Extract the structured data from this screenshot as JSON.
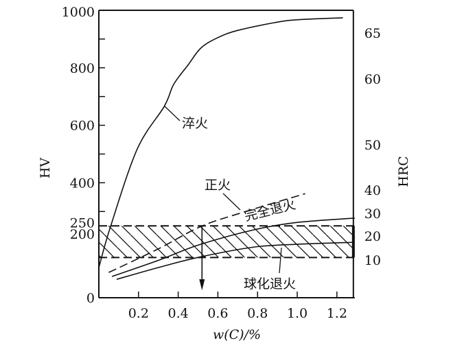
{
  "chart_data": {
    "type": "line",
    "title": "",
    "xlabel": "w(C)/%",
    "ylabel": "HV",
    "ylabel_right": "HRC",
    "xlim": [
      0,
      1.3
    ],
    "ylim": [
      0,
      1000
    ],
    "x_ticks": [
      0.2,
      0.4,
      0.6,
      0.8,
      1.0,
      1.2
    ],
    "x_tick_labels": [
      "0.2",
      "0.4",
      "0.6",
      "0.8",
      "1.0",
      "1.2"
    ],
    "y_ticks": [
      0,
      200,
      250,
      400,
      600,
      800,
      1000
    ],
    "y_tick_labels": [
      "0",
      "200",
      "250",
      "400",
      "600",
      "800",
      "1000"
    ],
    "y_minor_ticks": [
      300,
      500,
      700,
      900
    ],
    "right_ticks": [
      {
        "label": "65",
        "hv": 921
      },
      {
        "label": "60",
        "hv": 761
      },
      {
        "label": "50",
        "hv": 532
      },
      {
        "label": "40",
        "hv": 375
      },
      {
        "label": "30",
        "hv": 294
      },
      {
        "label": "20",
        "hv": 215
      },
      {
        "label": "10",
        "hv": 131
      }
    ],
    "grid": false,
    "series": [
      {
        "name": "淬火",
        "style": "solid",
        "x": [
          0,
          0.06,
          0.194,
          0.33,
          0.377,
          0.45,
          0.515,
          0.6,
          0.7,
          0.886,
          1.0,
          1.23
        ],
        "y": [
          105,
          250,
          518,
          666,
          742,
          810,
          869,
          905,
          930,
          957,
          967,
          974
        ]
      },
      {
        "name": "正火",
        "style": "solid",
        "x": [
          0.066,
          0.3,
          0.505,
          0.78,
          1.0,
          1.29
        ],
        "y": [
          74,
          130,
          184,
          236,
          262,
          277
        ]
      },
      {
        "name": "完全退火",
        "style": "dashed",
        "x": [
          0.05,
          0.3,
          0.515,
          0.74,
          1.04
        ],
        "y": [
          88,
          170,
          248,
          300,
          362
        ]
      },
      {
        "name": "球化退火",
        "style": "solid",
        "x": [
          0.09,
          0.3,
          0.505,
          0.78,
          1.0,
          1.29
        ],
        "y": [
          64,
          105,
          141,
          176,
          186,
          193
        ]
      }
    ],
    "band": {
      "hv_low": 140,
      "hv_high": 250,
      "x_from": 0,
      "x_to": 1.29,
      "fill": "hatched"
    },
    "arrow": {
      "x": 0.52,
      "from_hv": 250,
      "to_hv": 26
    },
    "annotations": [
      "淬火",
      "正火",
      "完全退火",
      "球化退火"
    ]
  }
}
